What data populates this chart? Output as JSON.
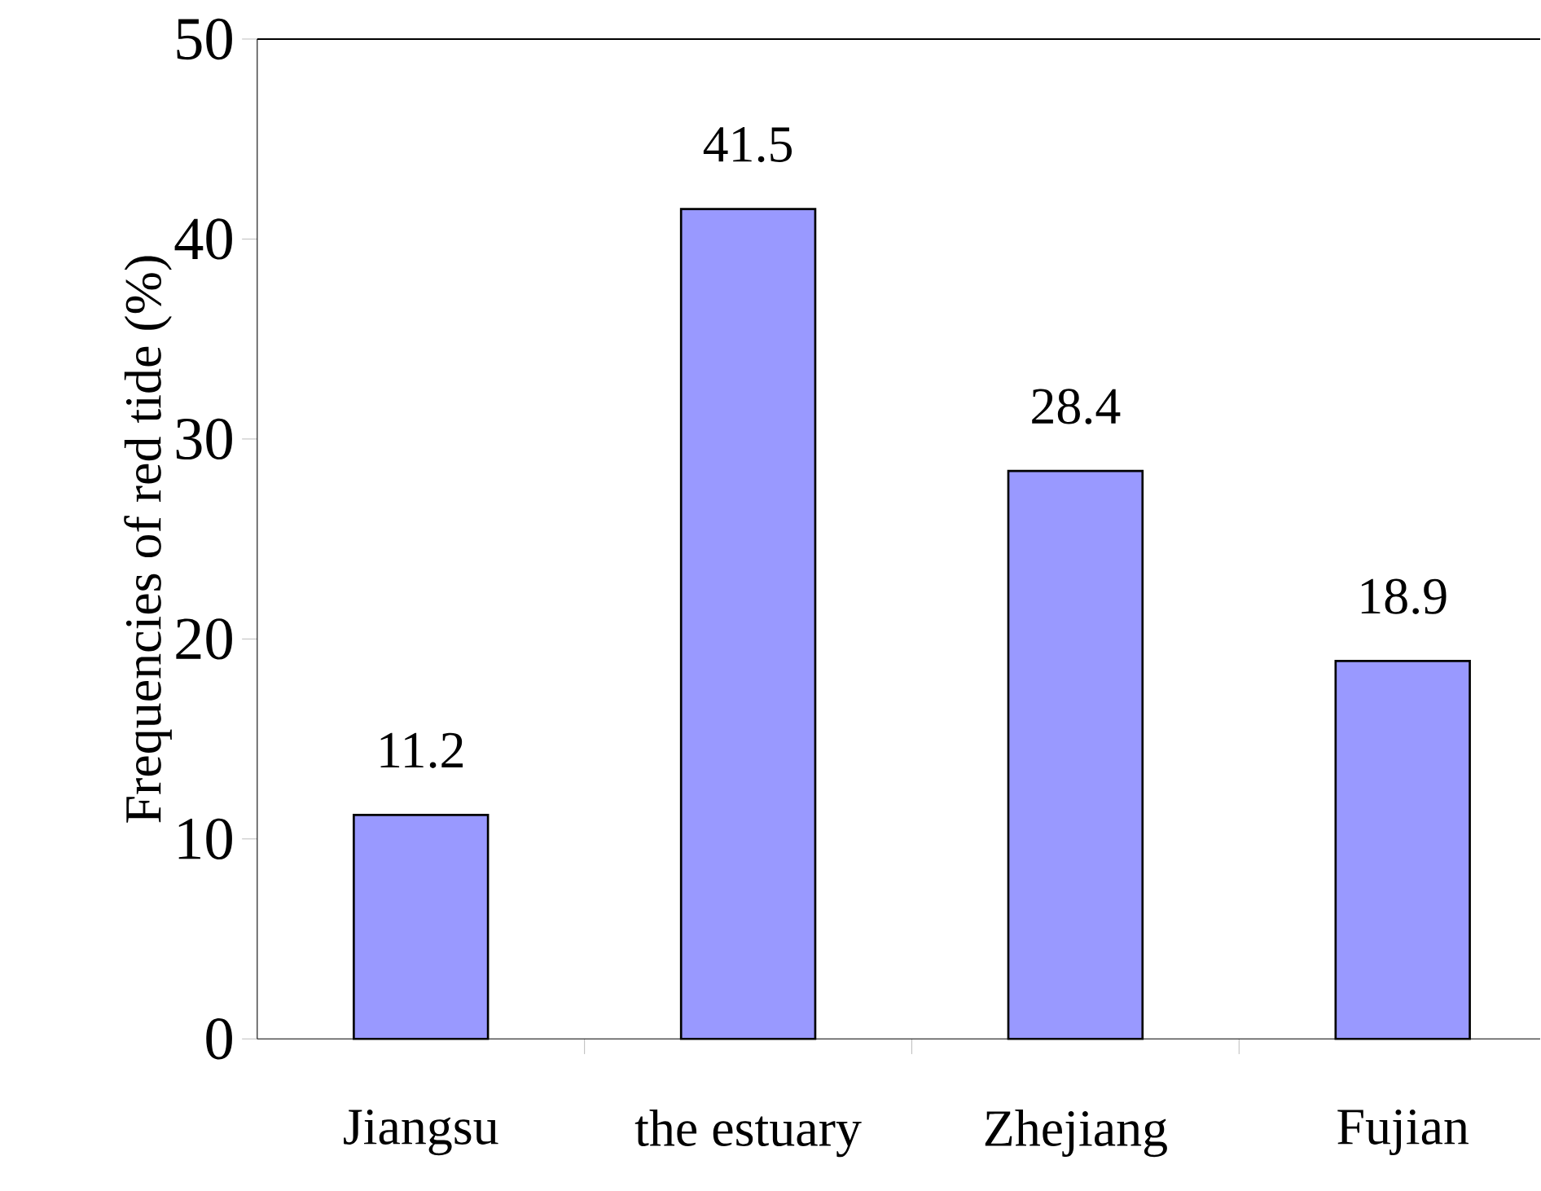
{
  "chart_data": {
    "type": "bar",
    "ylabel": "Frequencies of red tide (%)",
    "categories": [
      "Jiangsu",
      "the estuary",
      "Zhejiang",
      "Fujian"
    ],
    "values": [
      11.2,
      41.5,
      28.4,
      18.9
    ],
    "color": "#9999ff",
    "ylim": [
      0,
      50
    ],
    "yticks": [
      0,
      10,
      20,
      30,
      40,
      50
    ],
    "data_labels": true
  }
}
